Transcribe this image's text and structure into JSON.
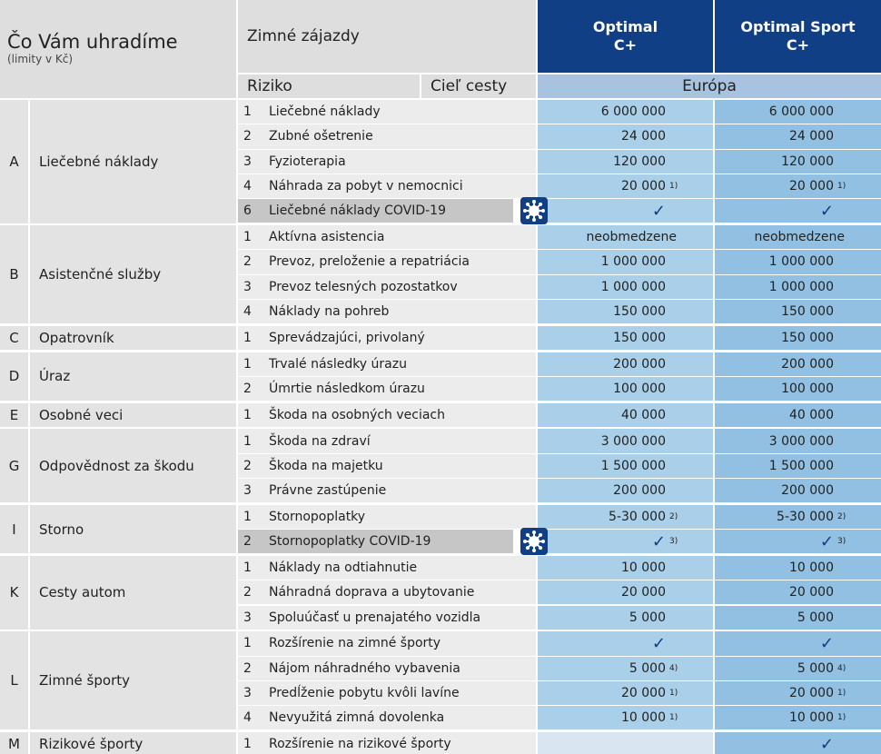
{
  "header": {
    "title": "Čo Vám uhradíme",
    "subtitle": "(limity v Kč)",
    "trip": "Zimné zájazdy",
    "risk": "Riziko",
    "destination": "Cieľ cesty",
    "region": "Európa",
    "plans": [
      {
        "name": "Optimal",
        "tier": "C+"
      },
      {
        "name": "Optimal Sport",
        "tier": "C+"
      }
    ]
  },
  "groups": [
    {
      "letter": "A",
      "name": "Liečebné náklady",
      "rows": [
        {
          "num": "1",
          "risk": "Liečebné náklady",
          "values": [
            "6 000 000",
            "6 000 000"
          ]
        },
        {
          "num": "2",
          "risk": "Zubné ošetrenie",
          "values": [
            "24 000",
            "24 000"
          ]
        },
        {
          "num": "3",
          "risk": "Fyzioterapia",
          "values": [
            "120 000",
            "120 000"
          ]
        },
        {
          "num": "4",
          "risk": "Náhrada za pobyt v nemocnici",
          "values": [
            "20 000",
            "20 000"
          ],
          "notes": [
            "1)",
            "1)"
          ]
        },
        {
          "num": "6",
          "risk": "Liečebné náklady COVID-19",
          "values": [
            "✓",
            "✓"
          ],
          "covid": true
        }
      ]
    },
    {
      "letter": "B",
      "name": "Asistenčné služby",
      "rows": [
        {
          "num": "1",
          "risk": "Aktívna asistencia",
          "values": [
            "neobmedzene",
            "neobmedzene"
          ]
        },
        {
          "num": "2",
          "risk": "Prevoz, preloženie a repatriácia",
          "values": [
            "1 000 000",
            "1 000 000"
          ]
        },
        {
          "num": "3",
          "risk": "Prevoz telesných pozostatkov",
          "values": [
            "1 000 000",
            "1 000 000"
          ]
        },
        {
          "num": "4",
          "risk": "Náklady na pohreb",
          "values": [
            "150 000",
            "150 000"
          ]
        }
      ]
    },
    {
      "letter": "C",
      "name": "Opatrovník",
      "rows": [
        {
          "num": "1",
          "risk": "Sprevádzajúci, privolaný",
          "values": [
            "150 000",
            "150 000"
          ]
        }
      ]
    },
    {
      "letter": "D",
      "name": "Úraz",
      "rows": [
        {
          "num": "1",
          "risk": "Trvalé následky úrazu",
          "values": [
            "200 000",
            "200 000"
          ]
        },
        {
          "num": "2",
          "risk": "Úmrtie následkom úrazu",
          "values": [
            "100 000",
            "100 000"
          ]
        }
      ]
    },
    {
      "letter": "E",
      "name": "Osobné veci",
      "rows": [
        {
          "num": "1",
          "risk": "Škoda na osobných veciach",
          "values": [
            "40 000",
            "40 000"
          ]
        }
      ]
    },
    {
      "letter": "G",
      "name": "Odpovědnost za škodu",
      "rows": [
        {
          "num": "1",
          "risk": "Škoda na zdraví",
          "values": [
            "3 000 000",
            "3 000 000"
          ]
        },
        {
          "num": "2",
          "risk": "Škoda na majetku",
          "values": [
            "1 500 000",
            "1 500 000"
          ]
        },
        {
          "num": "3",
          "risk": "Právne zastúpenie",
          "values": [
            "200 000",
            "200 000"
          ]
        }
      ]
    },
    {
      "letter": "I",
      "name": "Storno",
      "rows": [
        {
          "num": "1",
          "risk": "Stornopoplatky",
          "values": [
            "5-30 000",
            "5-30 000"
          ],
          "notes": [
            "2)",
            "2)"
          ]
        },
        {
          "num": "2",
          "risk": "Stornopoplatky COVID-19",
          "values": [
            "✓",
            "✓"
          ],
          "notes": [
            "3)",
            "3)"
          ],
          "covid": true
        }
      ]
    },
    {
      "letter": "K",
      "name": "Cesty autom",
      "rows": [
        {
          "num": "1",
          "risk": "Náklady na odtiahnutie",
          "values": [
            "10 000",
            "10 000"
          ]
        },
        {
          "num": "2",
          "risk": "Náhradná doprava a ubytovanie",
          "values": [
            "20 000",
            "20 000"
          ]
        },
        {
          "num": "3",
          "risk": "Spoluúčasť u prenajatého vozidla",
          "values": [
            "5 000",
            "5 000"
          ]
        }
      ]
    },
    {
      "letter": "L",
      "name": "Zimné športy",
      "rows": [
        {
          "num": "1",
          "risk": "Rozšírenie na zimné športy",
          "values": [
            "✓",
            "✓"
          ]
        },
        {
          "num": "2",
          "risk": "Nájom náhradného vybavenia",
          "values": [
            "5 000",
            "5 000"
          ],
          "notes": [
            "4)",
            "4)"
          ]
        },
        {
          "num": "3",
          "risk": "Predĺženie pobytu kvôli lavíne",
          "values": [
            "20 000",
            "20 000"
          ],
          "notes": [
            "1)",
            "1)"
          ]
        },
        {
          "num": "4",
          "risk": "Nevyužitá zimná dovolenka",
          "values": [
            "10 000",
            "10 000"
          ],
          "notes": [
            "1)",
            "1)"
          ]
        }
      ]
    },
    {
      "letter": "M",
      "name": "Rizikové športy",
      "rows": [
        {
          "num": "1",
          "risk": "Rozšírenie na rizikové športy",
          "values": [
            null,
            "✓"
          ]
        }
      ]
    }
  ]
}
